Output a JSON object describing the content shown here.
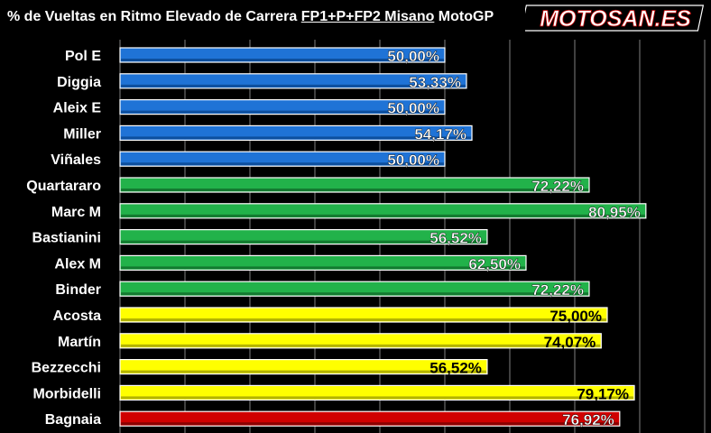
{
  "header": {
    "title_pre": "% de Vueltas en Ritmo Elevado de Carrera ",
    "title_underlined": "FP1+P+FP2 Misano",
    "title_post": " MotoGP",
    "logo_text": "MOTOSAN.ES"
  },
  "colors": {
    "background": "#000000",
    "grid": "#7f7f7f",
    "blue": "#1f73d6",
    "green": "#22b24a",
    "yellow": "#ffff00",
    "red": "#d00000"
  },
  "chart_data": {
    "type": "bar",
    "orientation": "horizontal",
    "title": "% de Vueltas en Ritmo Elevado de Carrera FP1+P+FP2 Misano MotoGP",
    "xlim": [
      0,
      100
    ],
    "grid": true,
    "categories": [
      "Pol E",
      "Diggia",
      "Aleix E",
      "Miller",
      "Viñales",
      "Quartararo",
      "Marc M",
      "Bastianini",
      "Alex M",
      "Binder",
      "Acosta",
      "Martín",
      "Bezzecchi",
      "Morbidelli",
      "Bagnaia"
    ],
    "values": [
      50.0,
      53.33,
      50.0,
      54.17,
      50.0,
      72.22,
      80.95,
      56.52,
      62.5,
      72.22,
      75.0,
      74.07,
      56.52,
      79.17,
      76.92
    ],
    "labels": [
      "50,00%",
      "53,33%",
      "50,00%",
      "54,17%",
      "50,00%",
      "72,22%",
      "80,95%",
      "56,52%",
      "62,50%",
      "72,22%",
      "75,00%",
      "74,07%",
      "56,52%",
      "79,17%",
      "76,92%"
    ],
    "bar_colors": [
      "blue",
      "blue",
      "blue",
      "blue",
      "blue",
      "green",
      "green",
      "green",
      "green",
      "green",
      "yellow",
      "yellow",
      "yellow",
      "yellow",
      "red"
    ]
  }
}
